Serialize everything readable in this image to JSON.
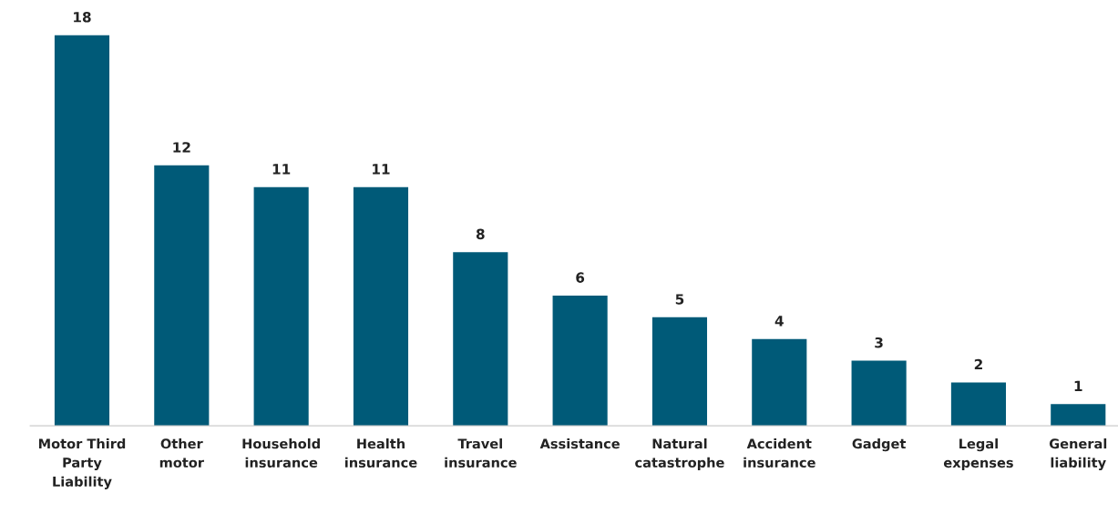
{
  "chart_data": {
    "type": "bar",
    "categories": [
      "Motor Third\nParty\nLiability",
      "Other\nmotor",
      "Household\ninsurance",
      "Health\ninsurance",
      "Travel\ninsurance",
      "Assistance",
      "Natural\ncatastrophe",
      "Accident\ninsurance",
      "Gadget",
      "Legal\nexpenses",
      "General\nliability"
    ],
    "values": [
      18,
      12,
      11,
      11,
      8,
      6,
      5,
      4,
      3,
      2,
      1
    ],
    "color": "#005a78",
    "data_labels": true,
    "grid": false,
    "legend": false
  }
}
